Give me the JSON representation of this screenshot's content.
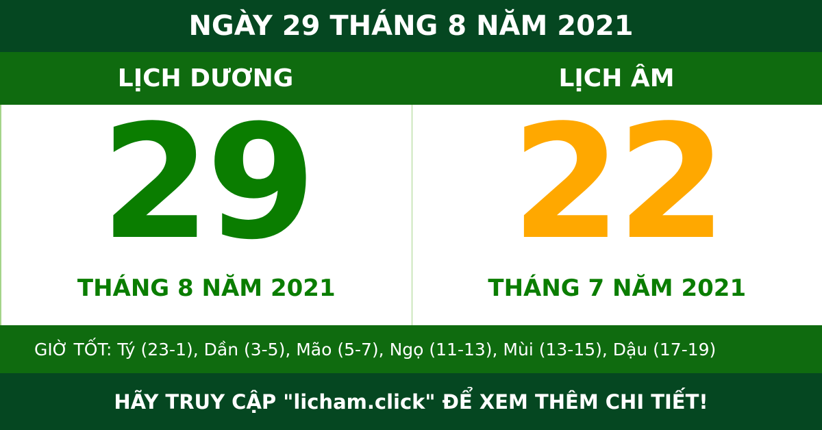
{
  "header": {
    "title": "NGÀY 29 THÁNG 8 NĂM 2021"
  },
  "solar": {
    "label": "LỊCH DƯƠNG",
    "day": "29",
    "month_year": "THÁNG 8 NĂM 2021",
    "color": "#0a7d00"
  },
  "lunar": {
    "label": "LỊCH ÂM",
    "day": "22",
    "month_year": "THÁNG 7 NĂM 2021",
    "color": "#ffa800"
  },
  "good_hours": "GIỜ TỐT: Tý (23-1), Dần (3-5), Mão (5-7), Ngọ (11-13), Mùi (13-15), Dậu (17-19)",
  "footer": {
    "text": "HÃY TRUY CẬP \"licham.click\" ĐỂ XEM THÊM CHI TIẾT!"
  }
}
